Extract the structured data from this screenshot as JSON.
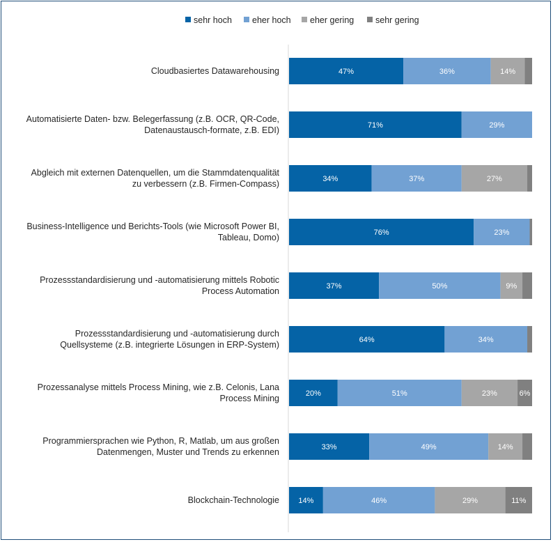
{
  "chart_data": {
    "type": "bar",
    "orientation": "horizontal",
    "stacked": true,
    "unit": "%",
    "legend_position": "top",
    "xlim": [
      0,
      100
    ],
    "series": [
      {
        "name": "sehr hoch",
        "color": "#0563a6",
        "label_color": "#ffffff",
        "values": [
          47,
          71,
          34,
          76,
          37,
          64,
          20,
          33,
          14
        ]
      },
      {
        "name": "eher hoch",
        "color": "#72a1d3",
        "label_color": "#ffffff",
        "values": [
          36,
          29,
          37,
          23,
          50,
          34,
          51,
          49,
          46
        ]
      },
      {
        "name": "eher gering",
        "color": "#a6a6a6",
        "label_color": "#ffffff",
        "values": [
          14,
          0,
          27,
          0,
          9,
          0,
          23,
          14,
          29
        ]
      },
      {
        "name": "sehr gering",
        "color": "#808080",
        "label_color": "#ffffff",
        "values": [
          3,
          0,
          2,
          1,
          4,
          2,
          6,
          4,
          11
        ]
      }
    ],
    "value_labels": [
      [
        "47%",
        "36%",
        "14%",
        ""
      ],
      [
        "71%",
        "29%",
        "",
        ""
      ],
      [
        "34%",
        "37%",
        "27%",
        ""
      ],
      [
        "76%",
        "23%",
        "",
        ""
      ],
      [
        "37%",
        "50%",
        "9%",
        ""
      ],
      [
        "64%",
        "34%",
        "",
        ""
      ],
      [
        "20%",
        "51%",
        "23%",
        "6%"
      ],
      [
        "33%",
        "49%",
        "14%",
        ""
      ],
      [
        "14%",
        "46%",
        "29%",
        "11%"
      ]
    ],
    "categories": [
      [
        "Cloudbasiertes Datawarehousing"
      ],
      [
        "Automatisierte Daten- bzw. Belegerfassung (z.B. OCR, QR-Code,",
        "Datenaustausch-formate, z.B. EDI)"
      ],
      [
        "Abgleich mit externen Datenquellen, um die Stammdatenqualität",
        "zu verbessern (z.B. Firmen-Compass)"
      ],
      [
        "Business-Intelligence und Berichts-Tools (wie Microsoft Power BI,",
        "Tableau, Domo)"
      ],
      [
        "Prozessstandardisierung und -automatisierung mittels Robotic",
        "Process Automation"
      ],
      [
        "Prozessstandardisierung und -automatisierung durch",
        "Quellsysteme (z.B. integrierte Lösungen in ERP-System)"
      ],
      [
        "Prozessanalyse mittels Process Mining, wie z.B. Celonis, Lana",
        "Process Mining"
      ],
      [
        "Programmiersprachen wie Python, R, Matlab, um aus großen",
        "Datenmengen, Muster und Trends zu erkennen"
      ],
      [
        "Blockchain-Technologie"
      ]
    ]
  }
}
